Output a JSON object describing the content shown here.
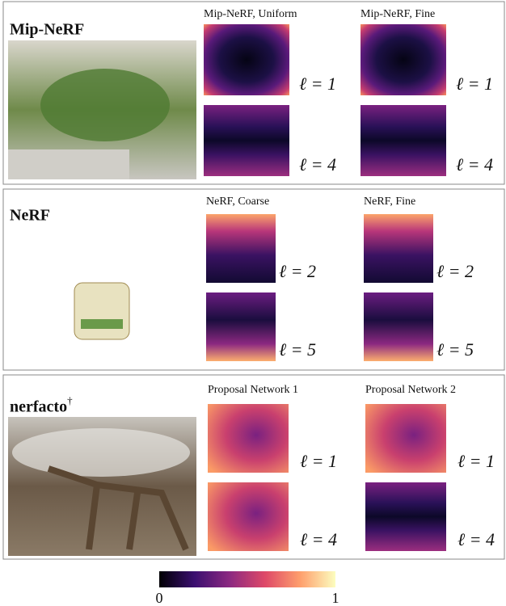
{
  "panels": [
    {
      "title": "Mip-NeRF",
      "columns": [
        {
          "title": "Mip-NeRF, Uniform",
          "levels": [
            "ℓ = 1",
            "ℓ = 4"
          ]
        },
        {
          "title": "Mip-NeRF, Fine",
          "levels": [
            "ℓ = 1",
            "ℓ = 4"
          ]
        }
      ]
    },
    {
      "title": "NeRF",
      "columns": [
        {
          "title": "NeRF, Coarse",
          "levels": [
            "ℓ = 2",
            "ℓ = 5"
          ]
        },
        {
          "title": "NeRF, Fine",
          "levels": [
            "ℓ = 2",
            "ℓ = 5"
          ]
        }
      ]
    },
    {
      "title": "nerfacto",
      "superscript": "†",
      "columns": [
        {
          "title": "Proposal Network 1",
          "levels": [
            "ℓ = 1",
            "ℓ = 4"
          ]
        },
        {
          "title": "Proposal Network 2",
          "levels": [
            "ℓ = 1",
            "ℓ = 4"
          ]
        }
      ]
    }
  ],
  "colorbar": {
    "ticks": [
      0,
      1
    ]
  }
}
